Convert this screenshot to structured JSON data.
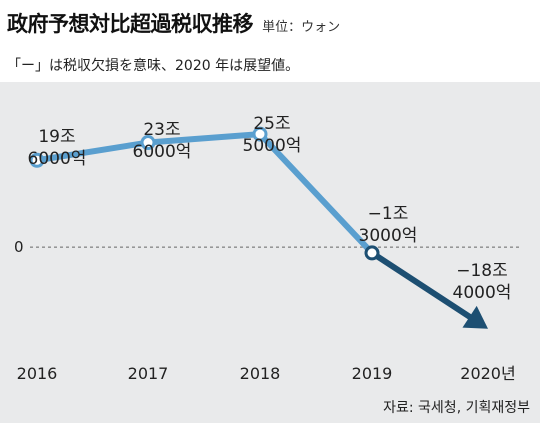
{
  "header": {
    "title": "政府予想対比超過税収推移",
    "unit": "単位：ウォン"
  },
  "note": "「ー」は税収欠損を意味、2020 年は展望値。",
  "source": "자료: 국세청, 기획재정부",
  "zero_label": "0",
  "colors": {
    "line_actual": "#5a9fcf",
    "line_forecast": "#1d4f72",
    "background": "#e9eaeb"
  },
  "chart_data": {
    "type": "line",
    "title": "政府予想対比超過税収推移",
    "categories": [
      "2016",
      "2017",
      "2018",
      "2019",
      "2020년"
    ],
    "values": [
      196000,
      236000,
      255000,
      -13000,
      -184000
    ],
    "value_labels": [
      [
        "19조",
        "6000억"
      ],
      [
        "23조",
        "6000억"
      ],
      [
        "25조",
        "5000억"
      ],
      [
        "−1조",
        "3000억"
      ],
      [
        "−18조",
        "4000억"
      ]
    ],
    "forecast_from_index": 3,
    "ylim": [
      -250000,
      350000
    ],
    "grid": false,
    "zero_line": true
  }
}
